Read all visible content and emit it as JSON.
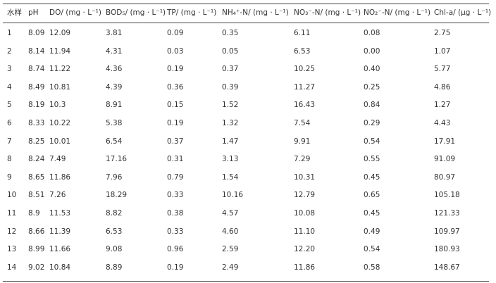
{
  "table": {
    "header": [
      "水样",
      "pH",
      "DO/ (mg · L⁻¹)",
      "BOD₅/ (mg · L⁻¹)",
      "TP/ (mg · L⁻¹)",
      "NH₄⁺-N/ (mg · L⁻¹)",
      "NO₃⁻-N/ (mg · L⁻¹)",
      "NO₂⁻-N/ (mg · L⁻¹)",
      "Chl-a/ (μg · L⁻¹)"
    ],
    "rows": [
      [
        "1",
        "8.09",
        "12.09",
        "3.81",
        "0.09",
        "0.35",
        "6.11",
        "0.08",
        "2.75"
      ],
      [
        "2",
        "8.14",
        "11.94",
        "4.31",
        "0.03",
        "0.05",
        "6.53",
        "0.00",
        "1.07"
      ],
      [
        "3",
        "8.74",
        "11.22",
        "4.36",
        "0.19",
        "0.37",
        "10.25",
        "0.40",
        "5.77"
      ],
      [
        "4",
        "8.49",
        "10.81",
        "4.39",
        "0.36",
        "0.39",
        "11.27",
        "0.25",
        "4.86"
      ],
      [
        "5",
        "8.19",
        "10.3",
        "8.91",
        "0.15",
        "1.52",
        "16.43",
        "0.84",
        "1.27"
      ],
      [
        "6",
        "8.33",
        "10.22",
        "5.38",
        "0.19",
        "1.32",
        "7.54",
        "0.29",
        "4.43"
      ],
      [
        "7",
        "8.25",
        "10.01",
        "6.54",
        "0.37",
        "1.47",
        "9.91",
        "0.54",
        "17.91"
      ],
      [
        "8",
        "8.24",
        "7.49",
        "17.16",
        "0.31",
        "3.13",
        "7.29",
        "0.55",
        "91.09"
      ],
      [
        "9",
        "8.65",
        "11.86",
        "7.96",
        "0.79",
        "1.54",
        "10.31",
        "0.45",
        "80.97"
      ],
      [
        "10",
        "8.51",
        "7.26",
        "18.29",
        "0.33",
        "10.16",
        "12.79",
        "0.65",
        "105.18"
      ],
      [
        "11",
        "8.9",
        "11.53",
        "8.82",
        "0.38",
        "4.57",
        "10.08",
        "0.45",
        "121.33"
      ],
      [
        "12",
        "8.66",
        "11.39",
        "6.53",
        "0.33",
        "4.60",
        "11.10",
        "0.49",
        "109.97"
      ],
      [
        "13",
        "8.99",
        "11.66",
        "9.08",
        "0.96",
        "2.59",
        "12.20",
        "0.54",
        "180.93"
      ],
      [
        "14",
        "9.02",
        "10.84",
        "8.89",
        "0.19",
        "2.49",
        "11.86",
        "0.58",
        "148.67"
      ]
    ]
  }
}
